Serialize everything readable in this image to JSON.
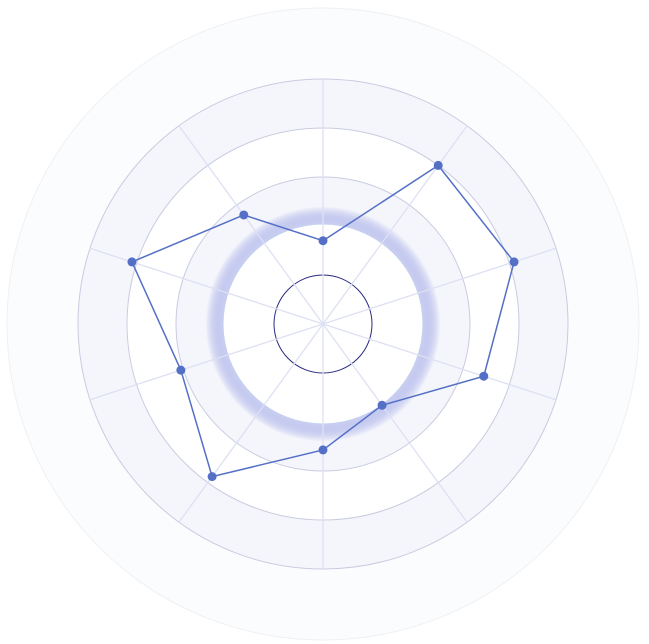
{
  "chart_data": {
    "type": "radar",
    "title": "",
    "axes_count": 10,
    "rlim": [
      0,
      5
    ],
    "ring_values": [
      1,
      2,
      3,
      4,
      5
    ],
    "grid": true,
    "legend": "none",
    "series": [
      {
        "values": [
          1.7,
          4.0,
          4.1,
          3.45,
          2.05,
          2.57,
          3.85,
          3.05,
          4.1,
          2.75
        ]
      }
    ],
    "colors": {
      "series": "#5470c6",
      "inner_ring": "#2a2a80",
      "grid": "#c9cbe0",
      "spoke": "#dde0f3",
      "band": "#f5f6fb",
      "outer_band": "#fbfcfd"
    }
  }
}
